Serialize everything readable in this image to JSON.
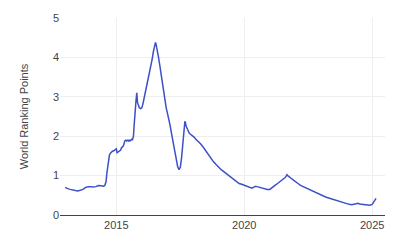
{
  "chart_data": {
    "type": "line",
    "ylabel": "World Ranking Points",
    "color": "#3c50c8",
    "xlim": [
      2012.8,
      2025.5
    ],
    "ylim": [
      0,
      5
    ],
    "xticks": [
      2015,
      2020,
      2025
    ],
    "yticks": [
      0,
      1,
      2,
      3,
      4,
      5
    ],
    "grid": true,
    "x": [
      2013.0,
      2013.05,
      2013.1,
      2013.2,
      2013.3,
      2013.4,
      2013.5,
      2013.6,
      2013.7,
      2013.8,
      2013.9,
      2014.0,
      2014.1,
      2014.2,
      2014.25,
      2014.3,
      2014.4,
      2014.5,
      2014.55,
      2014.6,
      2014.63,
      2014.67,
      2014.7,
      2014.73,
      2014.77,
      2014.8,
      2014.85,
      2014.9,
      2014.95,
      2015.0,
      2015.03,
      2015.07,
      2015.1,
      2015.13,
      2015.17,
      2015.2,
      2015.23,
      2015.27,
      2015.3,
      2015.33,
      2015.37,
      2015.4,
      2015.43,
      2015.47,
      2015.5,
      2015.53,
      2015.57,
      2015.6,
      2015.63,
      2015.67,
      2015.7,
      2015.73,
      2015.77,
      2015.8,
      2015.83,
      2015.87,
      2015.9,
      2015.95,
      2016.0,
      2016.05,
      2016.1,
      2016.15,
      2016.2,
      2016.25,
      2016.3,
      2016.35,
      2016.4,
      2016.45,
      2016.5,
      2016.53,
      2016.55,
      2016.6,
      2016.65,
      2016.7,
      2016.75,
      2016.8,
      2016.85,
      2016.9,
      2016.95,
      2017.0,
      2017.05,
      2017.1,
      2017.15,
      2017.2,
      2017.25,
      2017.3,
      2017.35,
      2017.4,
      2017.43,
      2017.45,
      2017.47,
      2017.5,
      2017.55,
      2017.6,
      2017.65,
      2017.68,
      2017.7,
      2017.73,
      2017.77,
      2017.8,
      2017.85,
      2017.9,
      2017.95,
      2018.0,
      2018.05,
      2018.1,
      2018.15,
      2018.2,
      2018.3,
      2018.4,
      2018.5,
      2018.6,
      2018.7,
      2018.8,
      2018.9,
      2019.0,
      2019.1,
      2019.2,
      2019.3,
      2019.4,
      2019.5,
      2019.6,
      2019.65,
      2019.7,
      2019.75,
      2019.8,
      2019.9,
      2020.0,
      2020.1,
      2020.2,
      2020.3,
      2020.35,
      2020.4,
      2020.45,
      2020.5,
      2020.6,
      2020.7,
      2020.8,
      2020.9,
      2021.0,
      2021.05,
      2021.1,
      2021.2,
      2021.3,
      2021.4,
      2021.5,
      2021.55,
      2021.6,
      2021.65,
      2021.67,
      2021.7,
      2021.73,
      2021.77,
      2021.8,
      2021.85,
      2021.9,
      2021.95,
      2022.0,
      2022.1,
      2022.2,
      2022.3,
      2022.4,
      2022.5,
      2022.6,
      2022.7,
      2022.8,
      2022.9,
      2023.0,
      2023.1,
      2023.2,
      2023.3,
      2023.4,
      2023.5,
      2023.6,
      2023.7,
      2023.8,
      2023.9,
      2024.0,
      2024.1,
      2024.2,
      2024.3,
      2024.4,
      2024.45,
      2024.5,
      2024.6,
      2024.7,
      2024.8,
      2024.9,
      2025.0,
      2025.1,
      2025.15
    ],
    "values": [
      0.7,
      0.68,
      0.67,
      0.65,
      0.63,
      0.62,
      0.61,
      0.63,
      0.65,
      0.7,
      0.72,
      0.72,
      0.71,
      0.72,
      0.73,
      0.75,
      0.74,
      0.73,
      0.75,
      0.85,
      1.05,
      1.25,
      1.45,
      1.52,
      1.57,
      1.6,
      1.62,
      1.63,
      1.65,
      1.68,
      1.58,
      1.6,
      1.62,
      1.63,
      1.65,
      1.7,
      1.72,
      1.75,
      1.8,
      1.88,
      1.9,
      1.88,
      1.9,
      1.88,
      1.9,
      1.88,
      1.9,
      1.92,
      1.9,
      2.0,
      2.3,
      2.65,
      2.9,
      3.1,
      2.85,
      2.78,
      2.72,
      2.7,
      2.72,
      2.85,
      3.0,
      3.2,
      3.35,
      3.5,
      3.65,
      3.8,
      3.95,
      4.15,
      4.35,
      4.38,
      4.35,
      4.2,
      4.0,
      3.8,
      3.58,
      3.35,
      3.1,
      2.9,
      2.72,
      2.58,
      2.45,
      2.28,
      2.1,
      1.92,
      1.72,
      1.52,
      1.35,
      1.22,
      1.18,
      1.15,
      1.18,
      1.2,
      1.45,
      1.8,
      2.15,
      2.38,
      2.35,
      2.25,
      2.18,
      2.12,
      2.08,
      2.05,
      2.03,
      2.0,
      1.97,
      1.93,
      1.9,
      1.87,
      1.8,
      1.72,
      1.62,
      1.52,
      1.42,
      1.35,
      1.28,
      1.2,
      1.15,
      1.1,
      1.05,
      1.0,
      0.95,
      0.9,
      0.87,
      0.84,
      0.82,
      0.8,
      0.78,
      0.76,
      0.73,
      0.7,
      0.68,
      0.7,
      0.72,
      0.73,
      0.72,
      0.7,
      0.68,
      0.66,
      0.65,
      0.65,
      0.67,
      0.7,
      0.75,
      0.8,
      0.85,
      0.9,
      0.92,
      0.95,
      1.0,
      1.02,
      1.0,
      0.98,
      0.96,
      0.94,
      0.92,
      0.9,
      0.88,
      0.85,
      0.8,
      0.75,
      0.72,
      0.68,
      0.65,
      0.62,
      0.58,
      0.55,
      0.52,
      0.5,
      0.47,
      0.45,
      0.43,
      0.41,
      0.4,
      0.37,
      0.35,
      0.33,
      0.3,
      0.28,
      0.27,
      0.26,
      0.27,
      0.28,
      0.3,
      0.28,
      0.27,
      0.26,
      0.25,
      0.25,
      0.27,
      0.38,
      0.42
    ]
  }
}
